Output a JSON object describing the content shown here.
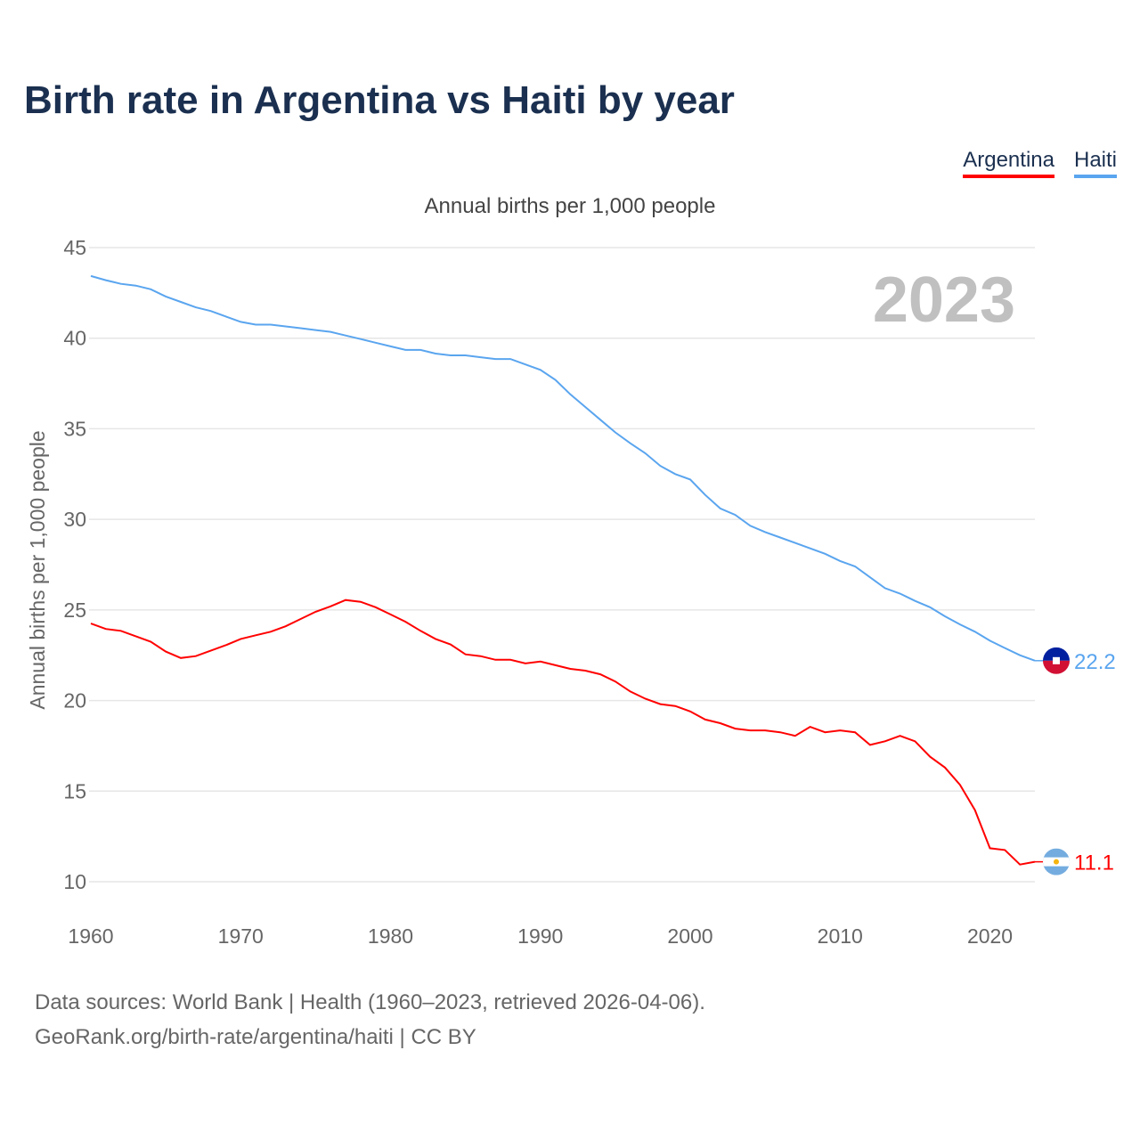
{
  "title": "Birth rate in Argentina vs Haiti by year",
  "subtitle": "Annual births per 1,000 people",
  "source_line1": "Data sources: World Bank | Health (1960–2023, retrieved 2026-04-06).",
  "source_line2": "GeoRank.org/birth-rate/argentina/haiti | CC BY",
  "chart_data": {
    "type": "line",
    "title": "Birth rate in Argentina vs Haiti by year",
    "xlabel": "",
    "ylabel": "Annual births per 1,000 people",
    "xlim": [
      1960,
      2023
    ],
    "ylim": [
      10,
      45
    ],
    "yticks": [
      10,
      15,
      20,
      25,
      30,
      35,
      40,
      45
    ],
    "xticks": [
      1960,
      1970,
      1980,
      1990,
      2000,
      2010,
      2020
    ],
    "grid": true,
    "legend_position": "top-right",
    "year_label": "2023",
    "x": [
      1960,
      1961,
      1962,
      1963,
      1964,
      1965,
      1966,
      1967,
      1968,
      1969,
      1970,
      1971,
      1972,
      1973,
      1974,
      1975,
      1976,
      1977,
      1978,
      1979,
      1980,
      1981,
      1982,
      1983,
      1984,
      1985,
      1986,
      1987,
      1988,
      1989,
      1990,
      1991,
      1992,
      1993,
      1994,
      1995,
      1996,
      1997,
      1998,
      1999,
      2000,
      2001,
      2002,
      2003,
      2004,
      2005,
      2006,
      2007,
      2008,
      2009,
      2010,
      2011,
      2012,
      2013,
      2014,
      2015,
      2016,
      2017,
      2018,
      2019,
      2020,
      2021,
      2022,
      2023
    ],
    "series": [
      {
        "name": "Argentina",
        "color": "#ff0000",
        "end_label": "11.1",
        "values": [
          24.25,
          23.95,
          23.85,
          23.55,
          23.25,
          22.7,
          22.35,
          22.45,
          22.75,
          23.05,
          23.4,
          23.6,
          23.8,
          24.1,
          24.5,
          24.9,
          25.2,
          25.55,
          25.45,
          25.15,
          24.75,
          24.35,
          23.85,
          23.4,
          23.1,
          22.55,
          22.45,
          22.25,
          22.25,
          22.05,
          22.15,
          21.95,
          21.75,
          21.65,
          21.45,
          21.05,
          20.5,
          20.1,
          19.8,
          19.7,
          19.4,
          18.95,
          18.75,
          18.45,
          18.35,
          18.35,
          18.25,
          18.05,
          18.55,
          18.25,
          18.35,
          18.25,
          17.55,
          17.75,
          18.05,
          17.75,
          16.9,
          16.3,
          15.35,
          13.95,
          11.85,
          11.75,
          10.95,
          11.1
        ]
      },
      {
        "name": "Haiti",
        "color": "#5aa5ef",
        "end_label": "22.2",
        "values": [
          43.43,
          43.2,
          43.0,
          42.9,
          42.7,
          42.3,
          42.0,
          41.7,
          41.5,
          41.2,
          40.9,
          40.75,
          40.75,
          40.65,
          40.55,
          40.45,
          40.35,
          40.15,
          39.95,
          39.75,
          39.55,
          39.35,
          39.35,
          39.15,
          39.05,
          39.05,
          38.95,
          38.85,
          38.85,
          38.55,
          38.25,
          37.7,
          36.9,
          36.2,
          35.5,
          34.8,
          34.2,
          33.65,
          32.95,
          32.5,
          32.2,
          31.35,
          30.6,
          30.25,
          29.65,
          29.3,
          29.0,
          28.7,
          28.4,
          28.1,
          27.7,
          27.4,
          26.8,
          26.2,
          25.9,
          25.5,
          25.15,
          24.65,
          24.2,
          23.8,
          23.3,
          22.9,
          22.5,
          22.2
        ]
      }
    ]
  }
}
